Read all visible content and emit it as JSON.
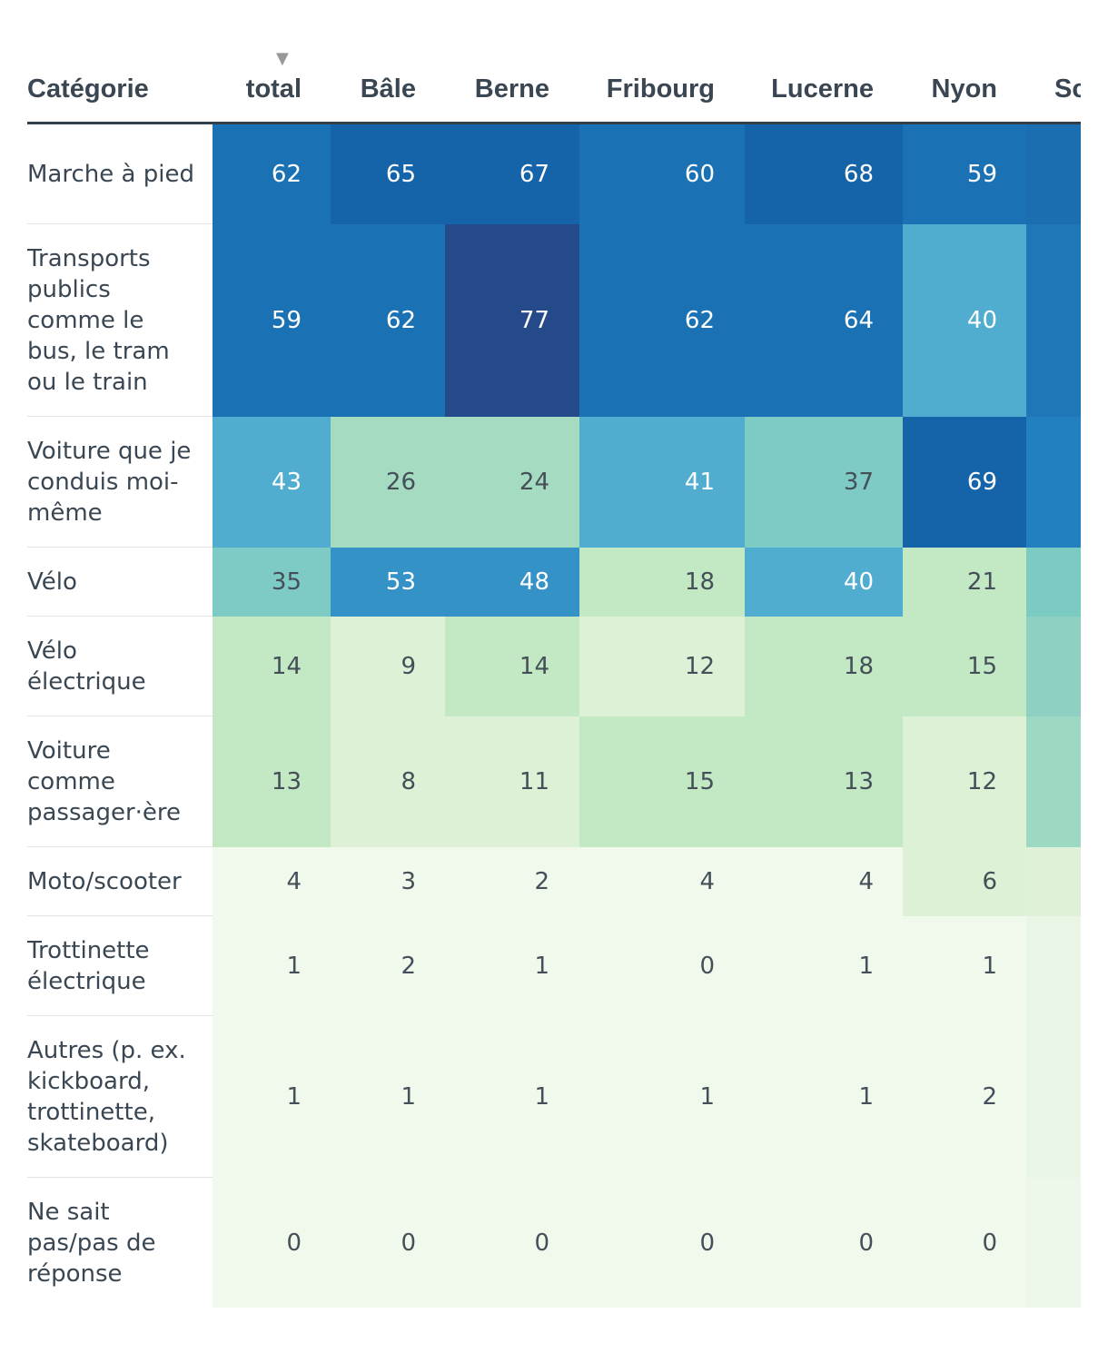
{
  "chart_data": {
    "type": "heatmap",
    "row_header": "Catégorie",
    "columns": [
      "total",
      "Bâle",
      "Berne",
      "Fribourg",
      "Lucerne",
      "Nyon",
      "Sc"
    ],
    "sorted_column": "total",
    "rows": [
      {
        "label": "Marche à pied",
        "values": [
          62,
          65,
          67,
          60,
          68,
          59,
          null
        ]
      },
      {
        "label": "Transports publics comme le bus, le tram ou le train",
        "values": [
          59,
          62,
          77,
          62,
          64,
          40,
          null
        ]
      },
      {
        "label": "Voiture que je conduis moi-même",
        "values": [
          43,
          26,
          24,
          41,
          37,
          69,
          null
        ]
      },
      {
        "label": "Vélo",
        "values": [
          35,
          53,
          48,
          18,
          40,
          21,
          null
        ]
      },
      {
        "label": "Vélo électrique",
        "values": [
          14,
          9,
          14,
          12,
          18,
          15,
          null
        ]
      },
      {
        "label": "Voiture comme passager·ère",
        "values": [
          13,
          8,
          11,
          15,
          13,
          12,
          null
        ]
      },
      {
        "label": "Moto/scooter",
        "values": [
          4,
          3,
          2,
          4,
          4,
          6,
          null
        ]
      },
      {
        "label": "Trottinette électrique",
        "values": [
          1,
          2,
          1,
          0,
          1,
          1,
          null
        ]
      },
      {
        "label": "Autres (p. ex. kickboard, trottinette, skateboard)",
        "values": [
          1,
          1,
          1,
          1,
          1,
          2,
          null
        ]
      },
      {
        "label": "Ne sait pas/pas de réponse",
        "values": [
          0,
          0,
          0,
          0,
          0,
          0,
          null
        ]
      }
    ],
    "truncated_column_fill": [
      "#1b6fb0",
      "#1e78b8",
      "#2380c0",
      "#7ccbc3",
      "#8fd0c2",
      "#9cd8c2",
      "#dff2d9",
      "#eaf6e5",
      "#eaf6e5",
      "#eef8ea"
    ],
    "color_scale": [
      "#f0f9ec",
      "#dcf1d6",
      "#c2e8c4",
      "#a4dbc1",
      "#7ecac4",
      "#50add0",
      "#3592c6",
      "#1a72b5",
      "#1563a8",
      "#254a8a"
    ]
  }
}
